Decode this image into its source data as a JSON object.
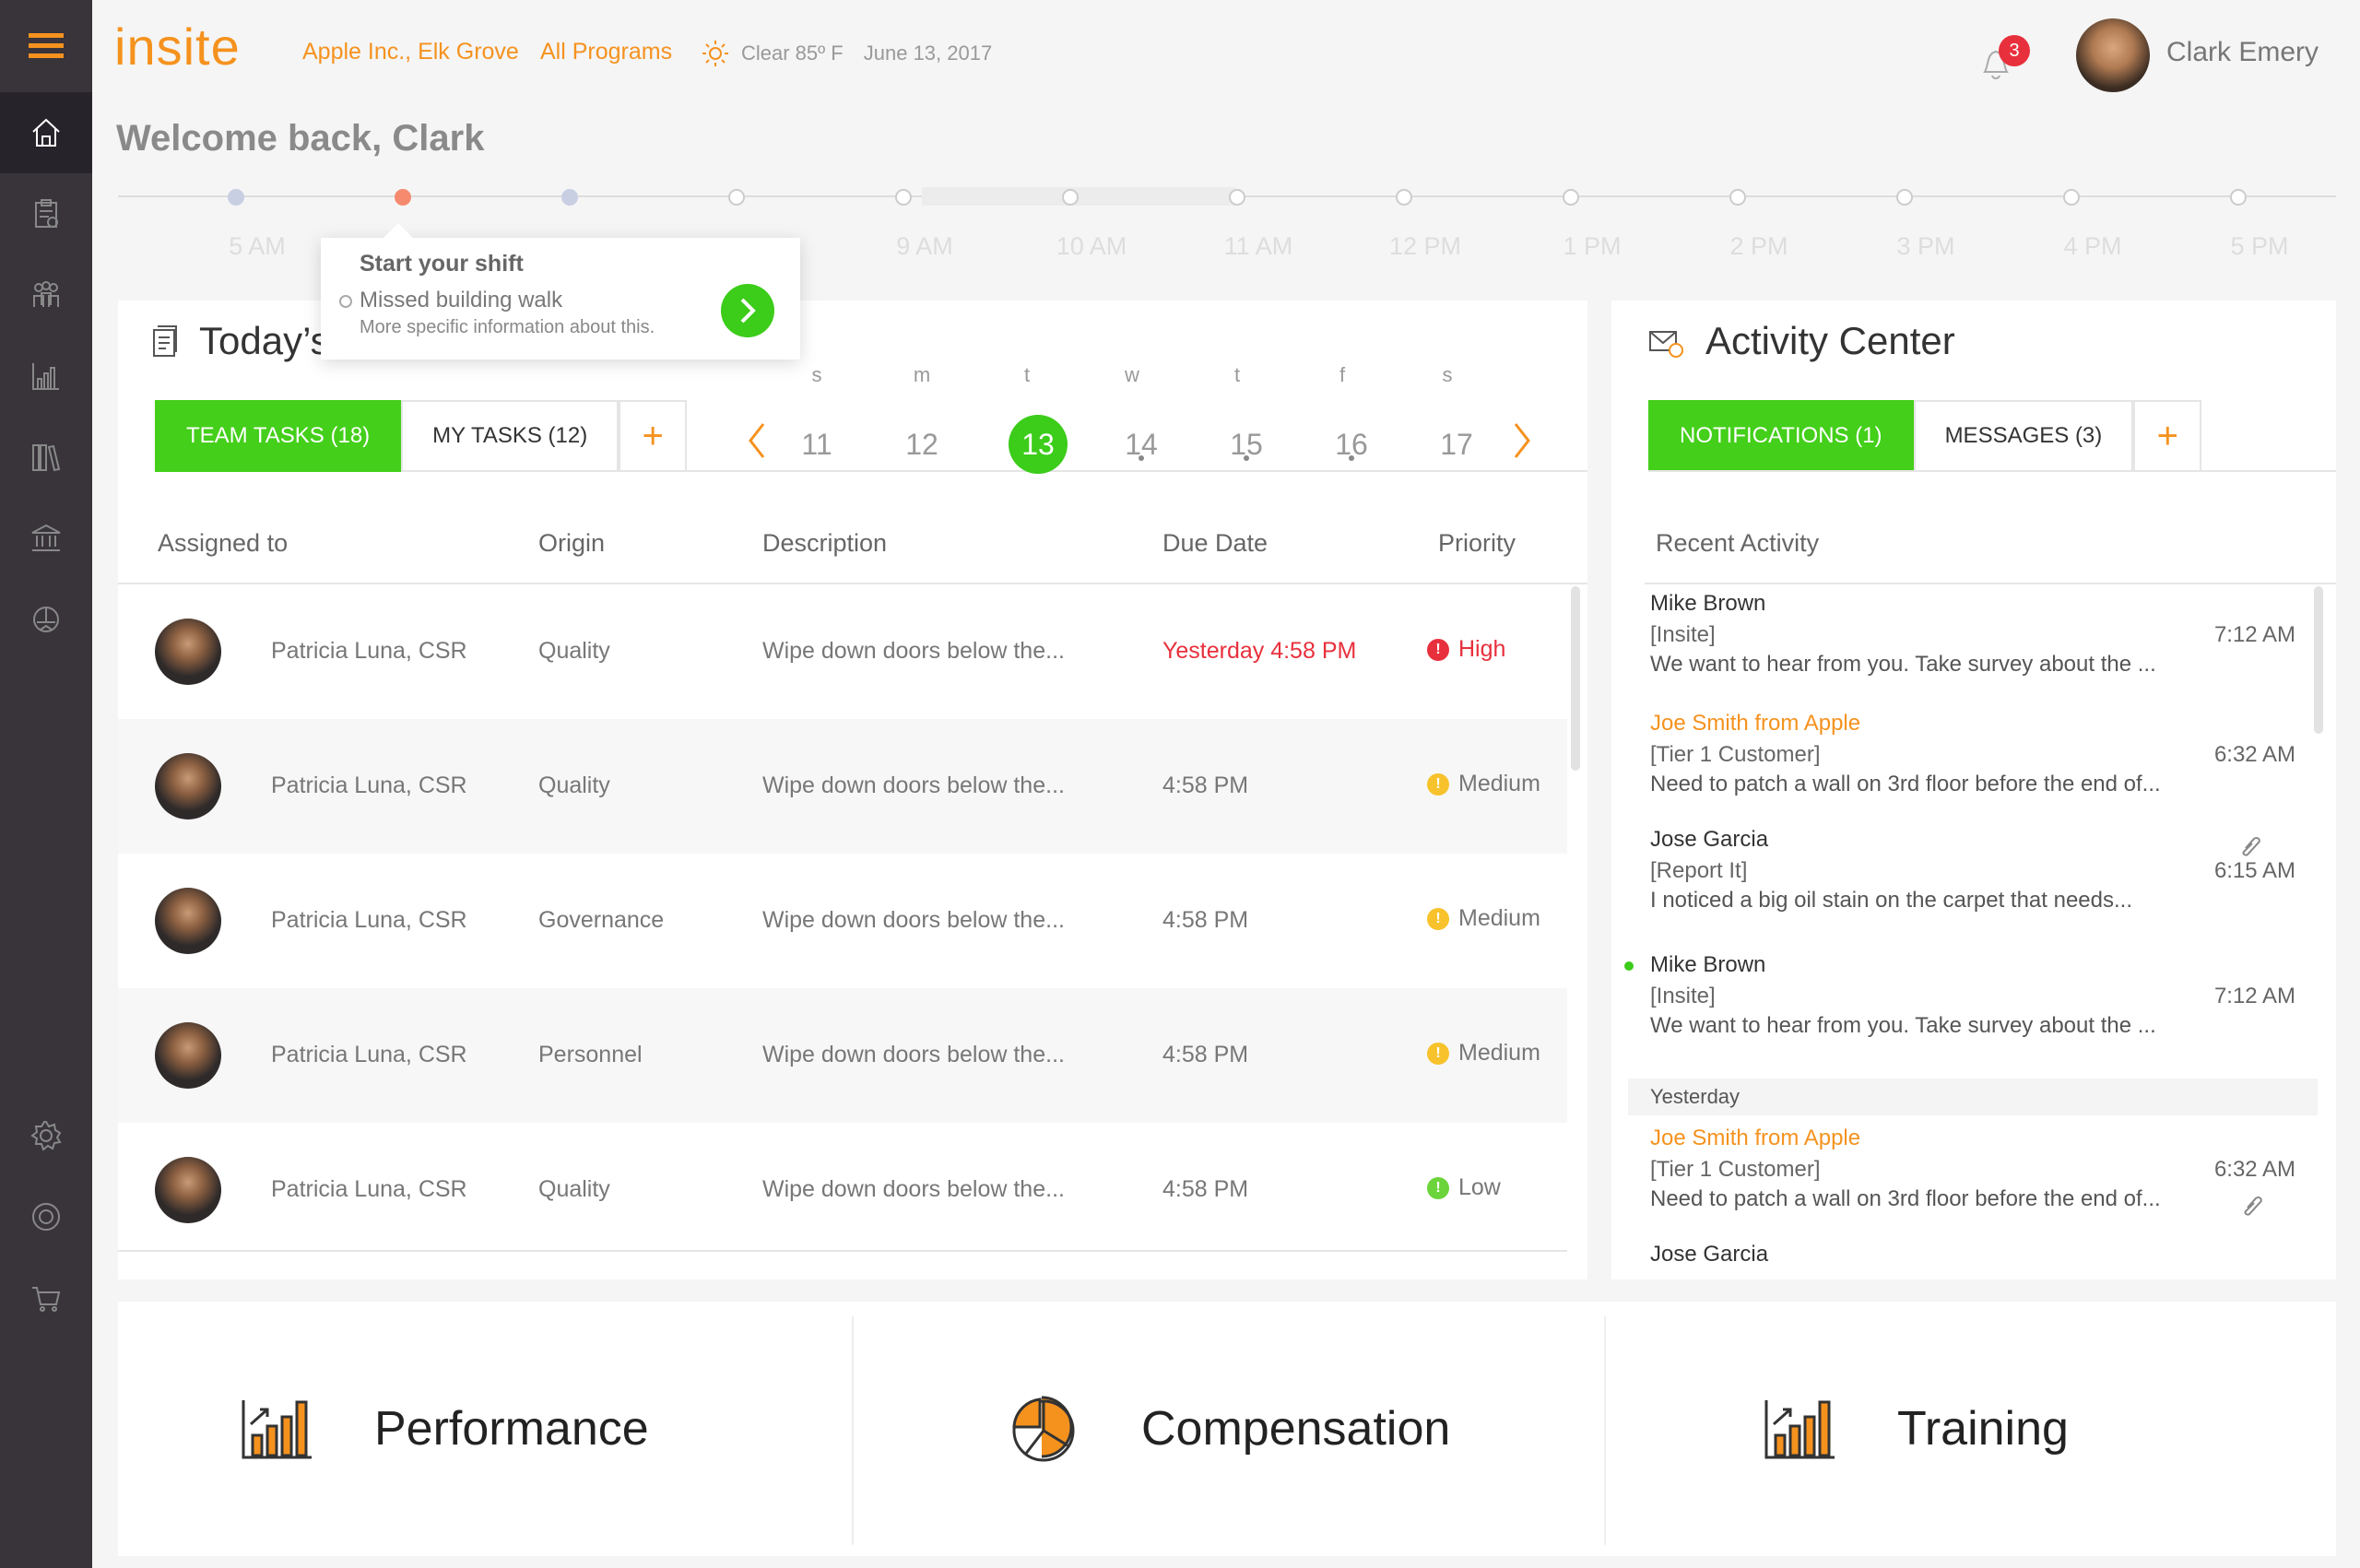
{
  "app": {
    "logo": "insite",
    "location": "Apple Inc., Elk Grove",
    "programs": "All Programs",
    "weather": "Clear 85º F",
    "date": "June 13, 2017"
  },
  "user": {
    "name": "Clark Emery",
    "notifications": "3"
  },
  "welcome": "Welcome back, Clark",
  "timeline": {
    "labels": [
      "5 AM",
      "9 AM",
      "10 AM",
      "11 AM",
      "12 PM",
      "1 PM",
      "2 PM",
      "3 PM",
      "4 PM",
      "5 PM"
    ]
  },
  "tooltip": {
    "title": "Start your shift",
    "item": "Missed building walk",
    "sub": "More specific information about this."
  },
  "tasks": {
    "title": "Today’s",
    "tabs": {
      "team": "TEAM TASKS (18)",
      "my": "MY TASKS (12)",
      "add": "+"
    },
    "calendar": {
      "days": [
        "s",
        "m",
        "t",
        "w",
        "t",
        "f",
        "s"
      ],
      "dates": [
        "11",
        "12",
        "13",
        "14",
        "15",
        "16",
        "17"
      ],
      "prev": "‹",
      "next": "›"
    },
    "columns": {
      "assigned": "Assigned to",
      "origin": "Origin",
      "description": "Description",
      "due": "Due Date",
      "priority": "Priority"
    },
    "rows": [
      {
        "assigned": "Patricia Luna, CSR",
        "origin": "Quality",
        "description": "Wipe down doors below the...",
        "due": "Yesterday 4:58 PM",
        "priority": "High"
      },
      {
        "assigned": "Patricia Luna, CSR",
        "origin": "Quality",
        "description": "Wipe down doors below the...",
        "due": "4:58 PM",
        "priority": "Medium"
      },
      {
        "assigned": "Patricia Luna, CSR",
        "origin": "Governance",
        "description": "Wipe down doors below the...",
        "due": "4:58 PM",
        "priority": "Medium"
      },
      {
        "assigned": "Patricia Luna, CSR",
        "origin": "Personnel",
        "description": "Wipe down doors below the...",
        "due": "4:58 PM",
        "priority": "Medium"
      },
      {
        "assigned": "Patricia Luna, CSR",
        "origin": "Quality",
        "description": "Wipe down doors below the...",
        "due": "4:58 PM",
        "priority": "Low"
      }
    ]
  },
  "activity": {
    "title": "Activity Center",
    "tabs": {
      "notifications": "NOTIFICATIONS (1)",
      "messages": "MESSAGES (3)",
      "add": "+"
    },
    "recent": "Recent Activity",
    "yesterday": "Yesterday",
    "items": [
      {
        "name": "Mike Brown",
        "tag": "[Insite]",
        "time": "7:12 AM",
        "msg": "We want to hear from you. Take survey about the ..."
      },
      {
        "name": "Joe Smith from Apple",
        "tag": "[Tier 1 Customer]",
        "time": "6:32 AM",
        "msg": "Need to patch a wall on 3rd floor before the end of..."
      },
      {
        "name": "Jose Garcia",
        "tag": "[Report It]",
        "time": "6:15 AM",
        "msg": "I noticed a big oil stain on the carpet that needs..."
      },
      {
        "name": "Mike Brown",
        "tag": "[Insite]",
        "time": "7:12 AM",
        "msg": "We want to hear from you. Take survey about the ..."
      },
      {
        "name": "Joe Smith from Apple",
        "tag": "[Tier 1 Customer]",
        "time": "6:32 AM",
        "msg": "Need to patch a wall on 3rd floor before the end of..."
      },
      {
        "name": "Jose Garcia"
      }
    ]
  },
  "bottom": {
    "performance": "Performance",
    "compensation": "Compensation",
    "training": "Training"
  },
  "colors": {
    "accent": "#f5921e",
    "green": "#44cf1a",
    "red": "#e8303c",
    "yellow": "#f7c22b",
    "lowgreen": "#6bd43a",
    "sidebar": "#38343a"
  }
}
